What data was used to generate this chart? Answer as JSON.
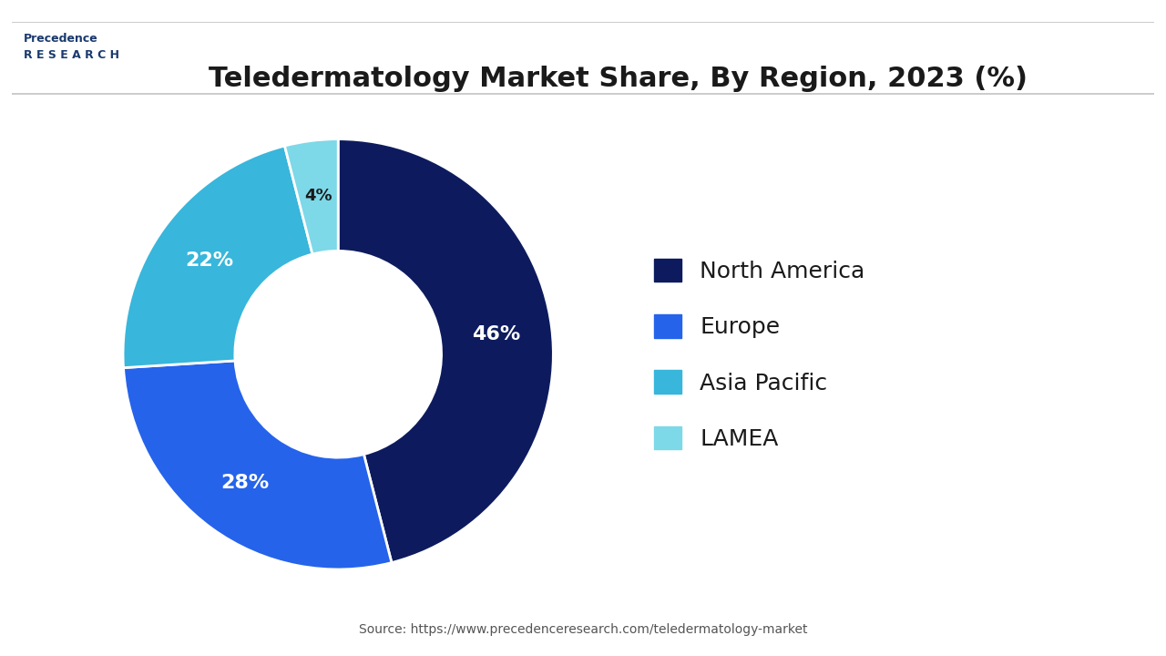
{
  "title": "Teledermatology Market Share, By Region, 2023 (%)",
  "slices": [
    46,
    28,
    22,
    4
  ],
  "labels": [
    "46%",
    "28%",
    "22%",
    "4%"
  ],
  "legend_labels": [
    "North America",
    "Europe",
    "Asia Pacific",
    "LAMEA"
  ],
  "colors": [
    "#0d1b5e",
    "#2563eb",
    "#38b6db",
    "#7dd8e8"
  ],
  "start_angle": 90,
  "source_text": "Source: https://www.precedenceresearch.com/teledermatology-market",
  "background_color": "#ffffff",
  "title_fontsize": 22,
  "label_fontsize": 16,
  "legend_fontsize": 18
}
